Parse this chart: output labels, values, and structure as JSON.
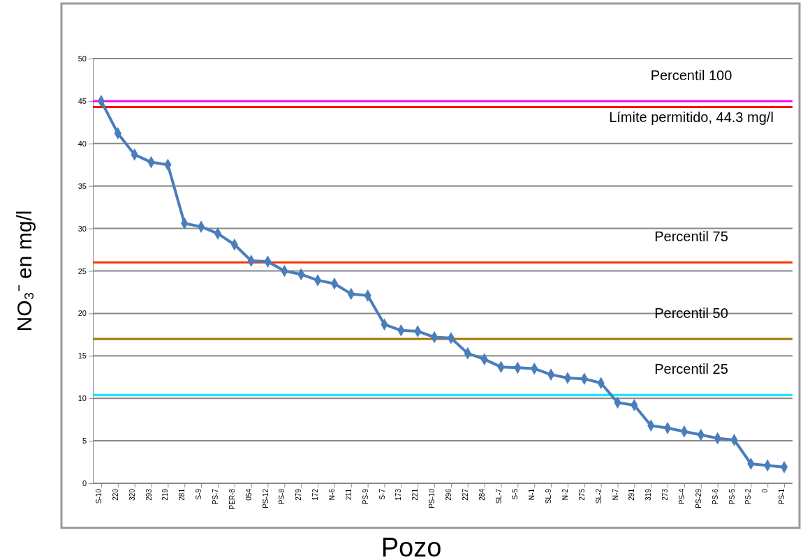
{
  "chart_data": {
    "type": "line",
    "xlabel": "Pozo",
    "ylabel": "NO₃⁻ en mg/l",
    "categories": [
      "S-10",
      "220",
      "320",
      "293",
      "219",
      "281",
      "S-9",
      "PS-7",
      "PER-8",
      "054",
      "PS-12",
      "PS-8",
      "279",
      "172",
      "N-6",
      "211",
      "PS-9",
      "S-7",
      "173",
      "221",
      "PS-10",
      "296",
      "227",
      "284",
      "SL-7",
      "S-5",
      "N-1",
      "SL-9",
      "N-2",
      "275",
      "SL-2",
      "N-7",
      "291",
      "319",
      "273",
      "PS-4",
      "PS-29",
      "PS-6",
      "PS-5",
      "PS-2",
      "0",
      "PS-1"
    ],
    "series": [
      {
        "color": "#4a7ebb",
        "values": [
          45,
          41.2,
          38.7,
          37.8,
          37.5,
          30.6,
          30.2,
          29.4,
          28.1,
          26.2,
          26.1,
          25.0,
          24.6,
          23.9,
          23.5,
          22.3,
          22.1,
          18.7,
          18.0,
          17.9,
          17.2,
          17.1,
          15.3,
          14.6,
          13.7,
          13.6,
          13.5,
          12.8,
          12.4,
          12.3,
          11.8,
          9.5,
          9.2,
          6.8,
          6.5,
          6.1,
          5.7,
          5.3,
          5.1,
          2.3,
          2.1,
          1.9
        ]
      }
    ],
    "ylim": [
      0,
      50
    ],
    "yticks": [
      0,
      5,
      10,
      15,
      20,
      25,
      30,
      35,
      40,
      45,
      50
    ],
    "grid": "y",
    "marker": "diamond",
    "line_style": "solid",
    "ref_lines": [
      {
        "axis": "y",
        "value": 45,
        "label": "Percentil 100",
        "color": "#ff00ff"
      },
      {
        "axis": "y",
        "value": 44.3,
        "label": "Límite permitido, 44.3 mg/l",
        "color": "#ff0000"
      },
      {
        "axis": "y",
        "value": 26,
        "label": "Percentil 75",
        "color": "#ff3300"
      },
      {
        "axis": "y",
        "value": 17,
        "label": "Percentil 50",
        "color": "#a07800"
      },
      {
        "axis": "y",
        "value": 10.4,
        "label": "Percentil 25",
        "color": "#00e5ff"
      }
    ]
  }
}
